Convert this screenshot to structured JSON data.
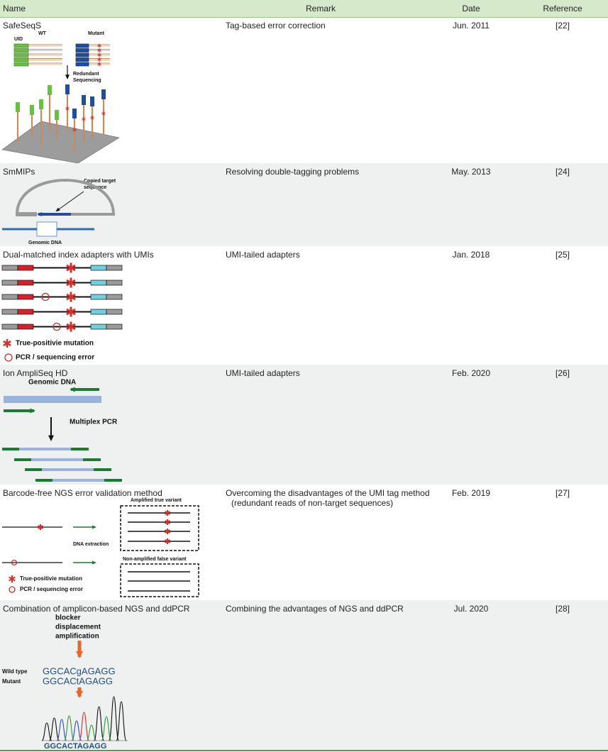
{
  "table": {
    "headers": [
      "Name",
      "Remark",
      "Date",
      "Reference"
    ],
    "rows": [
      {
        "name": "SafeSeqS",
        "remark": "Tag-based error correction",
        "date": "Jun. 2011",
        "reference": "[22]",
        "figure": {
          "uid": "UID",
          "wt": "WT",
          "mutant": "Mutant",
          "step": [
            "Redundant",
            "Sequencing"
          ]
        }
      },
      {
        "name": "SmMIPs",
        "remark": "Resolving double-tagging problems",
        "date": "May. 2013",
        "reference": "[24]",
        "figure": {
          "callout": [
            "Copied target",
            "sequence"
          ],
          "genomic": "Genomic DNA"
        }
      },
      {
        "name": "Dual-matched index adapters with UMIs",
        "remark": "UMI-tailed adapters",
        "date": "Jan. 2018",
        "reference": "[25]",
        "figure": {
          "legend": [
            "True-positivie mutation",
            "PCR / sequencing error"
          ]
        }
      },
      {
        "name": "Ion AmpliSeq HD",
        "remark": "UMI-tailed adapters",
        "date": "Feb. 2020",
        "reference": "[26]",
        "figure": {
          "genomic": "Genomic DNA",
          "step": "Multiplex PCR"
        }
      },
      {
        "name": "Barcode-free NGS error validation method",
        "remark": "Overcoming the disadvantages of the UMI tag method (redundant reads of non-target sequences)",
        "date": "Feb. 2019",
        "reference": "[27]",
        "figure": {
          "amplified": "Amplified true variant",
          "step": "DNA extraction",
          "nonamplified": "Non-amplified false variant",
          "legend": [
            "True-positivie mutation",
            "PCR / sequencing error"
          ]
        }
      },
      {
        "name": "Combination of amplicon-based NGS and ddPCR",
        "remark": "Combining the advantages of NGS and ddPCR",
        "date": "Jul. 2020",
        "reference": "[28]",
        "figure": {
          "method": [
            "blocker",
            "displacement",
            "amplification"
          ],
          "wildtype": "Wild type",
          "mutant": "Mutant",
          "wt_seq": "GGCACgAGAGG",
          "mut_seq": "GGCACtAGAGG",
          "trace": "GGCACTAGAGG"
        }
      }
    ]
  }
}
